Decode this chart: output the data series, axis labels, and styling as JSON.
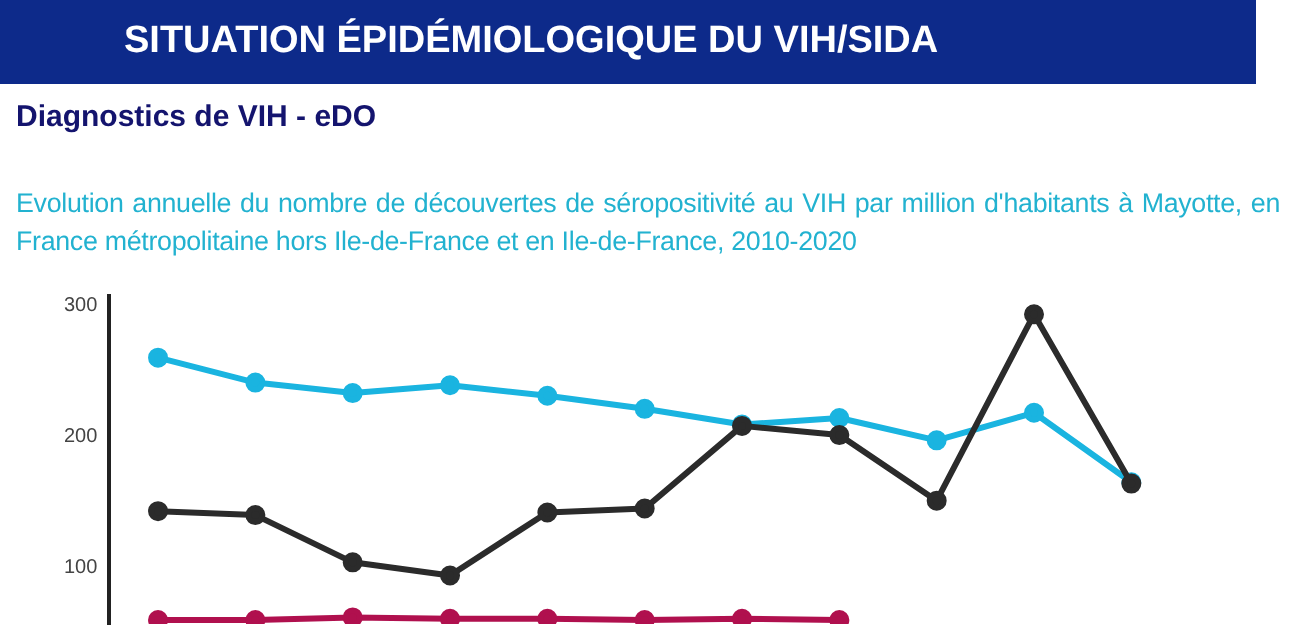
{
  "chart_data": {
    "type": "line",
    "title": "SITUATION ÉPIDÉMIOLOGIQUE DU VIH/SIDA",
    "subtitle": "Diagnostics de VIH - eDO",
    "annotations": [
      "Evolution annuelle du nombre de découvertes de séropositivité au VIH par million d'habitants à Mayotte, en France métropolitaine hors Ile-de-France et en Ile-de-France, 2010-2020"
    ],
    "categories": [
      null,
      null,
      null,
      null,
      null,
      null,
      null,
      null,
      null,
      null,
      null
    ],
    "series": [
      {
        "color": "#1ab4e0",
        "values": [
          260,
          241,
          233,
          239,
          231,
          221,
          209,
          214,
          197,
          218,
          165
        ]
      },
      {
        "color": "#2b2b2b",
        "values": [
          143,
          140,
          104,
          94,
          142,
          145,
          208,
          201,
          151,
          293,
          164
        ]
      },
      {
        "color": "#b0104e",
        "values": [
          60,
          60,
          62,
          61,
          61,
          60,
          61,
          60,
          null,
          null,
          null
        ]
      }
    ],
    "ylim": [
      57,
      307
    ],
    "yticks": [
      100,
      200,
      300
    ],
    "tick_labels": "y",
    "grid": false,
    "legend": false,
    "marker": "circle",
    "line_style": "solid"
  }
}
